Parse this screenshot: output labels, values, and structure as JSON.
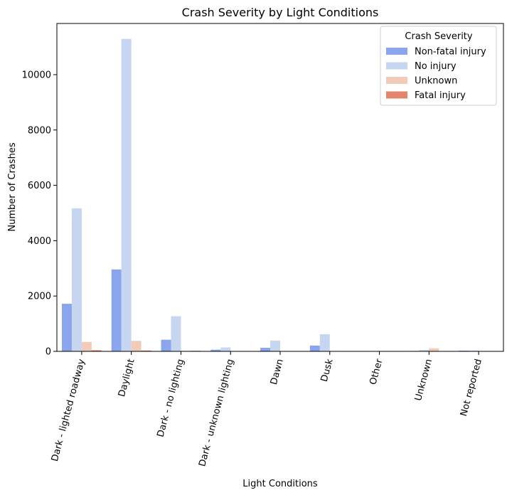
{
  "chart_data": {
    "type": "bar",
    "title": "Crash Severity by Light Conditions",
    "xlabel": "Light Conditions",
    "ylabel": "Number of Crashes",
    "ylim": [
      0,
      11850
    ],
    "yticks": [
      0,
      2000,
      4000,
      6000,
      8000,
      10000
    ],
    "categories": [
      "Dark - lighted roadway",
      "Daylight",
      "Dark - no lighting",
      "Dark - unknown lighting",
      "Dawn",
      "Dusk",
      "Other",
      "Unknown",
      "Not reported"
    ],
    "series": [
      {
        "name": "Non-fatal injury",
        "color": "#8aa5ee",
        "values": [
          1720,
          2960,
          420,
          60,
          130,
          210,
          5,
          15,
          25
        ]
      },
      {
        "name": "No injury",
        "color": "#c6d6f1",
        "values": [
          5170,
          11290,
          1270,
          140,
          390,
          620,
          10,
          50,
          30
        ]
      },
      {
        "name": "Unknown",
        "color": "#f1cbb8",
        "values": [
          340,
          380,
          20,
          5,
          10,
          15,
          2,
          110,
          5
        ]
      },
      {
        "name": "Fatal injury",
        "color": "#e2856c",
        "values": [
          40,
          30,
          20,
          3,
          4,
          6,
          0,
          0,
          2
        ]
      }
    ],
    "legend": {
      "title": "Crash Severity",
      "position": "top-right"
    },
    "grid": false
  }
}
